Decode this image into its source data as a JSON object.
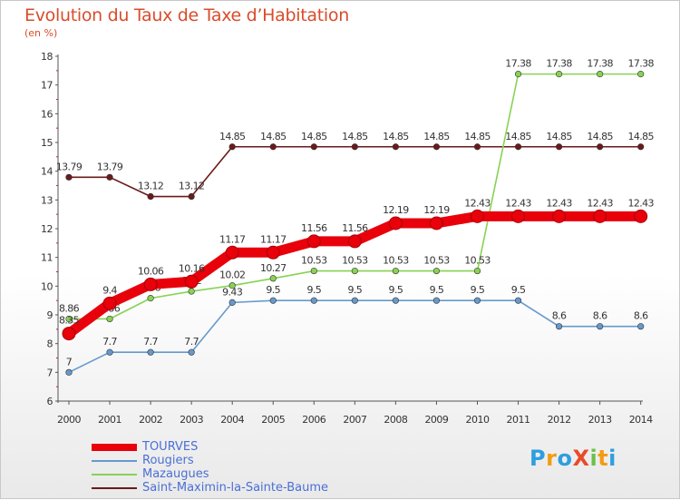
{
  "header": {
    "title": "Evolution du Taux de Taxe d’Habitation",
    "subtitle": "(en %)"
  },
  "logo": {
    "text": "ProXiti"
  },
  "chart_data": {
    "type": "line",
    "title": "Evolution du Taux de Taxe d’Habitation",
    "ylabel": "(en %)",
    "xlabel": "",
    "x": [
      "2000",
      "2001",
      "2002",
      "2003",
      "2004",
      "2005",
      "2006",
      "2007",
      "2008",
      "2009",
      "2010",
      "2011",
      "2012",
      "2013",
      "2014"
    ],
    "ylim": [
      6,
      18
    ],
    "yticks": [
      "6",
      "7",
      "8",
      "9",
      "10",
      "11",
      "12",
      "13",
      "14",
      "15",
      "16",
      "17",
      "18"
    ],
    "grid": false,
    "legend_position": "bottom",
    "series": [
      {
        "name": "Saint-Maximin-la-Sainte-Baume",
        "color": "#6b1a1a",
        "values": [
          13.79,
          13.79,
          13.12,
          13.12,
          14.85,
          14.85,
          14.85,
          14.85,
          14.85,
          14.85,
          14.85,
          14.85,
          14.85,
          14.85,
          14.85
        ],
        "labels": [
          "13.79",
          "13.79",
          "13.12",
          "13.12",
          "14.85",
          "14.85",
          "14.85",
          "14.85",
          "14.85",
          "14.85",
          "14.85",
          "14.85",
          "14.85",
          "14.85",
          "14.85"
        ]
      },
      {
        "name": "Mazaugues",
        "color": "#88d254",
        "values": [
          8.86,
          8.86,
          9.58,
          9.82,
          10.02,
          10.27,
          10.53,
          10.53,
          10.53,
          10.53,
          10.53,
          17.38,
          17.38,
          17.38,
          17.38
        ],
        "labels": [
          "8.86",
          "8.86",
          "9.58",
          "9.82",
          "10.02",
          "10.27",
          "10.53",
          "10.53",
          "10.53",
          "10.53",
          "10.53",
          "17.38",
          "17.38",
          "17.38",
          "17.38"
        ]
      },
      {
        "name": "Rougiers",
        "color": "#6699cc",
        "values": [
          7,
          7.7,
          7.7,
          7.7,
          9.43,
          9.5,
          9.5,
          9.5,
          9.5,
          9.5,
          9.5,
          9.5,
          8.6,
          8.6,
          8.6
        ],
        "labels": [
          "7",
          "7.7",
          "7.7",
          "7.7",
          "9.43",
          "9.5",
          "9.5",
          "9.5",
          "9.5",
          "9.5",
          "9.5",
          "9.5",
          "8.6",
          "8.6",
          "8.6"
        ]
      },
      {
        "name": "TOURVES",
        "color": "#e8000b",
        "values": [
          8.35,
          9.4,
          10.06,
          10.16,
          11.17,
          11.17,
          11.56,
          11.56,
          12.19,
          12.19,
          12.43,
          12.43,
          12.43,
          12.43,
          12.43
        ],
        "labels": [
          "8.35",
          "9.4",
          "10.06",
          "10.16",
          "11.17",
          "11.17",
          "11.56",
          "11.56",
          "12.19",
          "12.19",
          "12.43",
          "12.43",
          "12.43",
          "12.43",
          "12.43"
        ]
      }
    ],
    "legend_order": [
      "TOURVES",
      "Rougiers",
      "Mazaugues",
      "Saint-Maximin-la-Sainte-Baume"
    ]
  }
}
